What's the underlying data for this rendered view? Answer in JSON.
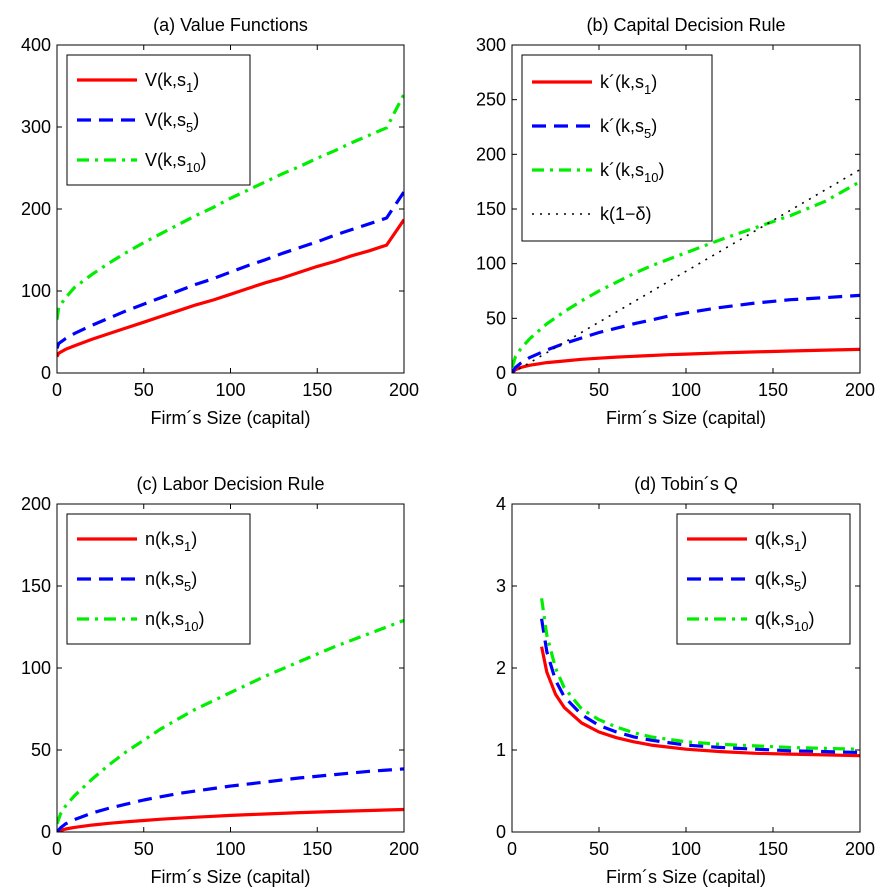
{
  "chart_data": [
    {
      "id": "a",
      "type": "line",
      "title": "(a) Value Functions",
      "xlabel": "Firm´s Size (capital)",
      "ylabel": "",
      "xlim": [
        0,
        200
      ],
      "ylim": [
        0,
        400
      ],
      "xticks": [
        0,
        50,
        100,
        150,
        200
      ],
      "yticks": [
        0,
        100,
        200,
        300,
        400
      ],
      "legend": "top-left",
      "grid": false,
      "series": [
        {
          "name": "V(k,s1)",
          "label": "V(k,s",
          "sub": "1",
          "tail": ")",
          "color": "#ff0000",
          "style": "solid",
          "x": [
            0,
            1,
            5,
            10,
            20,
            30,
            40,
            50,
            60,
            70,
            80,
            90,
            100,
            110,
            120,
            130,
            140,
            150,
            160,
            170,
            180,
            190,
            200
          ],
          "y": [
            20,
            24,
            29,
            33,
            41,
            48,
            55,
            62,
            69,
            76,
            83,
            89,
            96,
            103,
            110,
            116,
            123,
            130,
            136,
            143,
            149,
            156,
            187
          ]
        },
        {
          "name": "V(k,s5)",
          "label": "V(k,s",
          "sub": "5",
          "tail": ")",
          "color": "#0000ff",
          "style": "dashed",
          "x": [
            0,
            1,
            5,
            10,
            20,
            30,
            40,
            50,
            60,
            70,
            80,
            90,
            100,
            110,
            120,
            130,
            140,
            150,
            160,
            170,
            180,
            190,
            200
          ],
          "y": [
            30,
            36,
            42,
            48,
            58,
            67,
            76,
            84,
            92,
            100,
            108,
            115,
            123,
            131,
            138,
            146,
            153,
            160,
            168,
            175,
            182,
            189,
            221
          ]
        },
        {
          "name": "V(k,s10)",
          "label": "V(k,s",
          "sub": "10",
          "tail": ")",
          "color": "#00ee00",
          "style": "dashdot",
          "x": [
            0,
            1,
            5,
            10,
            20,
            30,
            40,
            50,
            60,
            70,
            80,
            90,
            100,
            110,
            120,
            130,
            140,
            150,
            160,
            170,
            180,
            190,
            200
          ],
          "y": [
            65,
            80,
            92,
            104,
            120,
            134,
            147,
            159,
            170,
            181,
            192,
            202,
            213,
            223,
            233,
            243,
            252,
            262,
            271,
            281,
            290,
            299,
            340
          ]
        }
      ]
    },
    {
      "id": "b",
      "type": "line",
      "title": "(b) Capital Decision Rule",
      "xlabel": "Firm´s Size (capital)",
      "ylabel": "",
      "xlim": [
        0,
        200
      ],
      "ylim": [
        0,
        300
      ],
      "xticks": [
        0,
        50,
        100,
        150,
        200
      ],
      "yticks": [
        0,
        50,
        100,
        150,
        200,
        250,
        300
      ],
      "legend": "top-left",
      "grid": false,
      "series": [
        {
          "name": "k´(k,s1)",
          "label": "k´(k,s",
          "sub": "1",
          "tail": ")",
          "color": "#ff0000",
          "style": "solid",
          "x": [
            0,
            2,
            5,
            10,
            20,
            30,
            40,
            50,
            60,
            70,
            80,
            90,
            100,
            120,
            140,
            160,
            180,
            200
          ],
          "y": [
            0,
            3,
            5,
            7,
            9.5,
            11,
            12.5,
            13.5,
            14.5,
            15.3,
            16,
            16.7,
            17.3,
            18.4,
            19.3,
            20.1,
            20.9,
            21.6
          ]
        },
        {
          "name": "k´(k,s5)",
          "label": "k´(k,s",
          "sub": "5",
          "tail": ")",
          "color": "#0000ff",
          "style": "dashed",
          "x": [
            0,
            2,
            5,
            10,
            20,
            30,
            40,
            50,
            60,
            70,
            80,
            90,
            100,
            120,
            140,
            160,
            180,
            200
          ],
          "y": [
            0,
            5,
            9,
            14,
            21,
            27,
            32,
            37,
            41,
            45,
            48.5,
            52,
            55,
            60,
            64,
            67,
            69,
            71
          ]
        },
        {
          "name": "k´(k,s10)",
          "label": "k´(k,s",
          "sub": "10",
          "tail": ")",
          "color": "#00ee00",
          "style": "dashdot",
          "x": [
            0,
            2,
            5,
            10,
            20,
            30,
            40,
            50,
            60,
            70,
            80,
            90,
            100,
            120,
            140,
            160,
            180,
            200
          ],
          "y": [
            5,
            15,
            22,
            31,
            45,
            56,
            66,
            75,
            83,
            91,
            98,
            104,
            110,
            122,
            133,
            144,
            157,
            175
          ]
        },
        {
          "name": "k(1−δ)",
          "label": "k(1−δ)",
          "sub": "",
          "tail": "",
          "color": "#000000",
          "style": "dotted",
          "x": [
            0,
            200
          ],
          "y": [
            0,
            186
          ]
        }
      ]
    },
    {
      "id": "c",
      "type": "line",
      "title": "(c) Labor Decision Rule",
      "xlabel": "Firm´s Size (capital)",
      "ylabel": "",
      "xlim": [
        0,
        200
      ],
      "ylim": [
        0,
        200
      ],
      "xticks": [
        0,
        50,
        100,
        150,
        200
      ],
      "yticks": [
        0,
        50,
        100,
        150,
        200
      ],
      "legend": "top-left",
      "grid": false,
      "series": [
        {
          "name": "n(k,s1)",
          "label": "n(k,s",
          "sub": "1",
          "tail": ")",
          "color": "#ff0000",
          "style": "solid",
          "x": [
            0,
            2,
            5,
            10,
            20,
            30,
            40,
            50,
            60,
            70,
            80,
            90,
            100,
            120,
            140,
            160,
            180,
            200
          ],
          "y": [
            0,
            1,
            1.8,
            2.8,
            4.2,
            5.3,
            6.2,
            7,
            7.8,
            8.4,
            9,
            9.6,
            10.1,
            11,
            11.8,
            12.5,
            13.1,
            13.7
          ]
        },
        {
          "name": "n(k,s5)",
          "label": "n(k,s",
          "sub": "5",
          "tail": ")",
          "color": "#0000ff",
          "style": "dashed",
          "x": [
            0,
            2,
            5,
            10,
            20,
            30,
            40,
            50,
            60,
            70,
            80,
            90,
            100,
            120,
            140,
            160,
            180,
            200
          ],
          "y": [
            0,
            2.5,
            5,
            7.5,
            11.5,
            14.5,
            17,
            19.5,
            21.5,
            23.5,
            25,
            26.5,
            28,
            30.5,
            33,
            35,
            37,
            38.5
          ]
        },
        {
          "name": "n(k,s10)",
          "label": "n(k,s",
          "sub": "10",
          "tail": ")",
          "color": "#00ee00",
          "style": "dashdot",
          "x": [
            0,
            2,
            5,
            10,
            20,
            30,
            40,
            50,
            60,
            70,
            80,
            90,
            100,
            120,
            140,
            160,
            180,
            200
          ],
          "y": [
            5,
            11,
            16,
            22,
            32,
            41,
            49,
            56,
            63,
            69,
            75,
            80,
            85,
            95,
            104,
            113,
            121,
            129
          ]
        }
      ]
    },
    {
      "id": "d",
      "type": "line",
      "title": "(d) Tobin´s Q",
      "xlabel": "Firm´s Size (capital)",
      "ylabel": "",
      "xlim": [
        0,
        200
      ],
      "ylim": [
        0,
        4
      ],
      "xticks": [
        0,
        50,
        100,
        150,
        200
      ],
      "yticks": [
        0,
        1,
        2,
        3,
        4
      ],
      "legend": "top-right",
      "grid": false,
      "series": [
        {
          "name": "q(k,s1)",
          "label": "q(k,s",
          "sub": "1",
          "tail": ")",
          "color": "#ff0000",
          "style": "solid",
          "x": [
            17,
            20,
            25,
            30,
            40,
            50,
            60,
            70,
            80,
            100,
            120,
            140,
            160,
            180,
            200
          ],
          "y": [
            2.26,
            1.95,
            1.68,
            1.52,
            1.33,
            1.22,
            1.15,
            1.1,
            1.06,
            1.01,
            0.98,
            0.96,
            0.95,
            0.94,
            0.93
          ]
        },
        {
          "name": "q(k,s5)",
          "label": "q(k,s",
          "sub": "5",
          "tail": ")",
          "color": "#0000ff",
          "style": "dashed",
          "x": [
            17,
            20,
            25,
            30,
            40,
            50,
            60,
            70,
            80,
            100,
            120,
            140,
            160,
            180,
            200
          ],
          "y": [
            2.6,
            2.2,
            1.85,
            1.65,
            1.43,
            1.3,
            1.22,
            1.16,
            1.12,
            1.06,
            1.03,
            1.01,
            0.99,
            0.98,
            0.97
          ]
        },
        {
          "name": "q(k,s10)",
          "label": "q(k,s",
          "sub": "10",
          "tail": ")",
          "color": "#00ee00",
          "style": "dashdot",
          "x": [
            17,
            20,
            25,
            30,
            40,
            50,
            60,
            70,
            80,
            100,
            120,
            140,
            160,
            180,
            200
          ],
          "y": [
            2.85,
            2.4,
            2.0,
            1.76,
            1.5,
            1.37,
            1.28,
            1.21,
            1.16,
            1.1,
            1.07,
            1.05,
            1.03,
            1.02,
            1.01
          ]
        }
      ]
    }
  ]
}
